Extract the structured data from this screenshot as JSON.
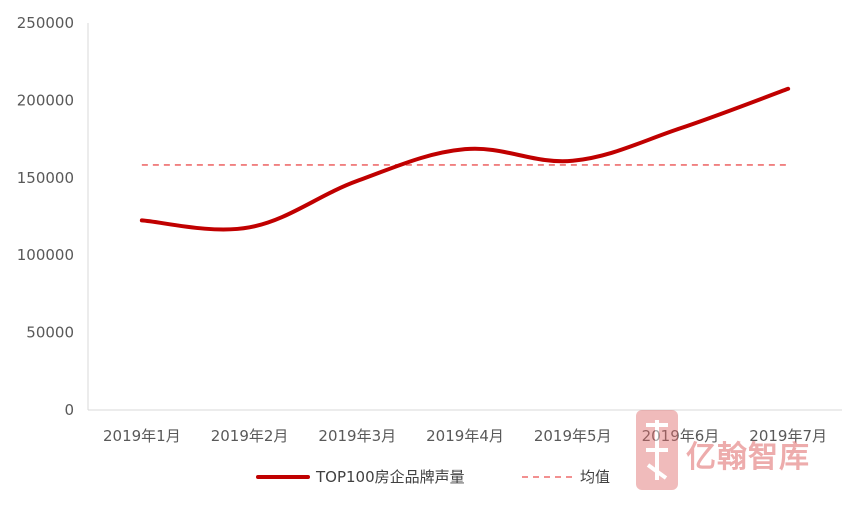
{
  "chart_data": {
    "type": "line",
    "title": "",
    "xlabel": "",
    "ylabel": "",
    "categories": [
      "2019年1月",
      "2019年2月",
      "2019年3月",
      "2019年4月",
      "2019年5月",
      "2019年6月",
      "2019年7月"
    ],
    "y_ticks": [
      "0",
      "50000",
      "100000",
      "150000",
      "200000",
      "250000"
    ],
    "ylim": [
      0,
      250000
    ],
    "grid": false,
    "legend_position": "bottom",
    "series": [
      {
        "name": "TOP100房企品牌声量",
        "values": [
          122500,
          118000,
          148000,
          168500,
          161000,
          182000,
          207500
        ],
        "color": "#c00000",
        "style": "solid"
      },
      {
        "name": "均值",
        "values": [
          158300,
          158300,
          158300,
          158300,
          158300,
          158300,
          158300
        ],
        "color": "#f08080",
        "style": "dashed"
      }
    ]
  },
  "watermark": {
    "text": "亿翰智库",
    "color": "#e06a6a"
  }
}
